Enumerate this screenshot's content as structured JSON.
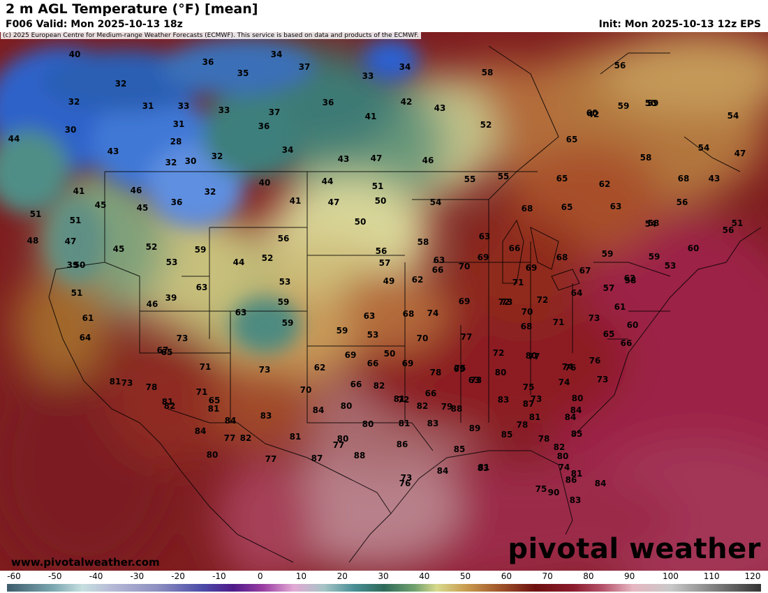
{
  "header": {
    "title": "2 m AGL Temperature (°F) [mean]",
    "valid": "F006 Valid: Mon 2025-10-13 18z",
    "init": "Init: Mon 2025-10-13 12z EPS"
  },
  "map": {
    "copyright": "(c) 2025 European Centre for Medium-range Weather Forecasts (ECMWF). This service is based on data and products of the ECMWF.",
    "site": "www.pivotalweather.com",
    "brand": "pivotal weather",
    "temperature_labels": [
      "40",
      "34",
      "36",
      "37",
      "33",
      "34",
      "35",
      "32",
      "32",
      "31",
      "33",
      "33",
      "37",
      "36",
      "41",
      "42",
      "43",
      "30",
      "31",
      "28",
      "36",
      "34",
      "58",
      "56",
      "44",
      "43",
      "32",
      "30",
      "32",
      "43",
      "47",
      "46",
      "52",
      "50",
      "42",
      "59",
      "59",
      "54",
      "54",
      "65",
      "65",
      "60",
      "47",
      "58",
      "41",
      "46",
      "40",
      "44",
      "51",
      "45",
      "45",
      "36",
      "32",
      "41",
      "47",
      "50",
      "55",
      "55",
      "62",
      "68",
      "43",
      "51",
      "39",
      "51",
      "48",
      "50",
      "54",
      "56",
      "57",
      "53",
      "56",
      "58",
      "47",
      "45",
      "52",
      "59",
      "44",
      "52",
      "56",
      "58",
      "63",
      "68",
      "65",
      "63",
      "60",
      "50",
      "39",
      "53",
      "49",
      "62",
      "66",
      "70",
      "69",
      "66",
      "69",
      "68",
      "67",
      "62",
      "53",
      "54",
      "56",
      "51",
      "63",
      "59",
      "59",
      "71",
      "73",
      "72",
      "70",
      "63",
      "64",
      "57",
      "58",
      "51",
      "46",
      "63",
      "59",
      "53",
      "68",
      "74",
      "69",
      "72",
      "73",
      "61",
      "60",
      "61",
      "64",
      "63",
      "59",
      "59",
      "70",
      "77",
      "68",
      "71",
      "65",
      "66",
      "73",
      "65",
      "73",
      "62",
      "69",
      "66",
      "50",
      "72",
      "80",
      "74",
      "76",
      "73",
      "67",
      "71",
      "65",
      "69",
      "78",
      "75",
      "77",
      "76",
      "73",
      "63",
      "80",
      "75",
      "74",
      "80",
      "81",
      "78",
      "71",
      "70",
      "66",
      "82",
      "72",
      "66",
      "69",
      "73",
      "83",
      "87",
      "84",
      "82",
      "81",
      "84",
      "83",
      "84",
      "80",
      "81",
      "82",
      "79",
      "73",
      "81",
      "84",
      "85",
      "81",
      "77",
      "82",
      "81",
      "80",
      "80",
      "81",
      "83",
      "88",
      "89",
      "85",
      "78",
      "78",
      "82",
      "80",
      "84",
      "80",
      "77",
      "87",
      "77",
      "88",
      "86",
      "85",
      "83",
      "81",
      "86",
      "84",
      "74",
      "75",
      "73",
      "84",
      "81",
      "90",
      "83",
      "76"
    ]
  },
  "colorbar": {
    "ticks": [
      "-60",
      "-50",
      "-40",
      "-30",
      "-20",
      "-10",
      "0",
      "10",
      "20",
      "30",
      "40",
      "50",
      "60",
      "70",
      "80",
      "90",
      "100",
      "110",
      "120"
    ]
  },
  "colors": {
    "cold_blue": "#2f5fc8",
    "teal": "#3f7e78",
    "yellow_green": "#d8d99a",
    "warm_brown": "#a55a2a",
    "hot_red": "#8a1a1c",
    "magenta_red": "#9c2044",
    "pink": "#c8707a"
  }
}
